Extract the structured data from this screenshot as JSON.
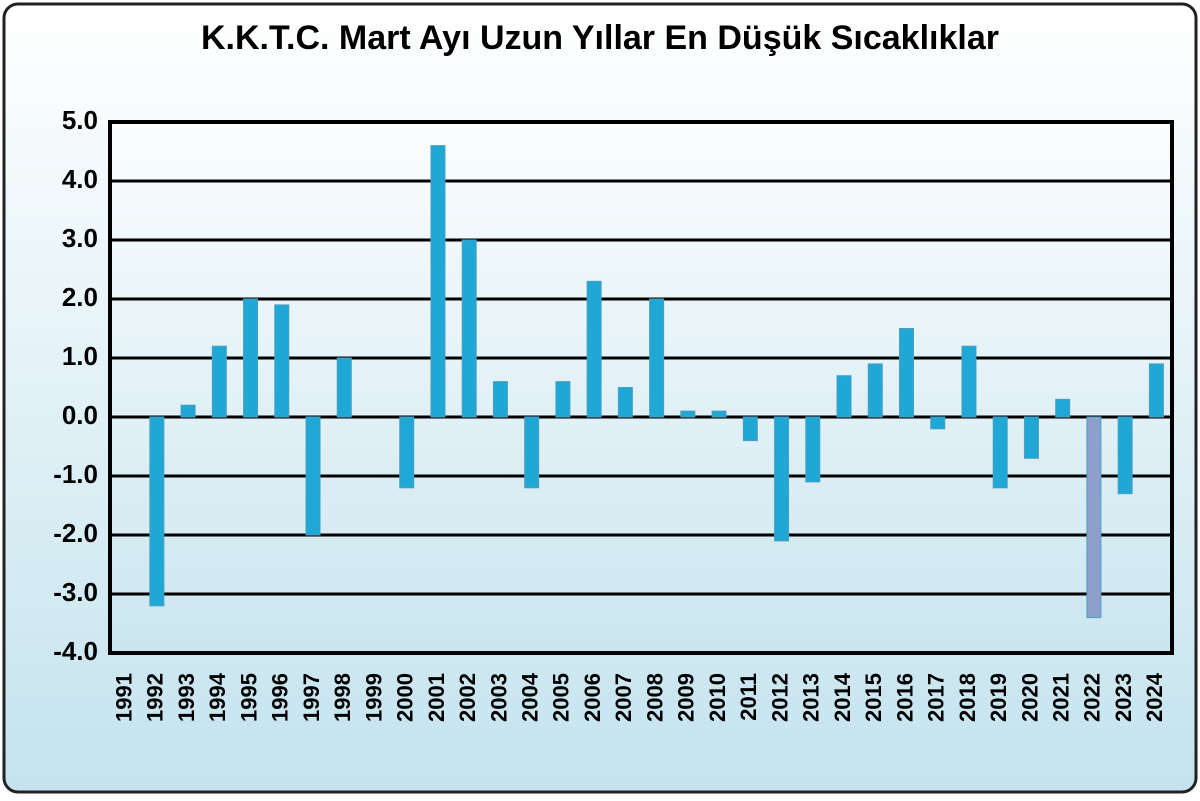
{
  "chart_data": {
    "type": "bar",
    "title": "K.K.T.C. Mart Ayı Uzun Yıllar En Düşük Sıcaklıklar",
    "categories": [
      "1991",
      "1992",
      "1993",
      "1994",
      "1995",
      "1996",
      "1997",
      "1998",
      "1999",
      "2000",
      "2001",
      "2002",
      "2003",
      "2004",
      "2005",
      "2006",
      "2007",
      "2008",
      "2009",
      "2010",
      "2011",
      "2012",
      "2013",
      "2014",
      "2015",
      "2016",
      "2017",
      "2018",
      "2019",
      "2020",
      "2021",
      "2022",
      "2023",
      "2024"
    ],
    "values": [
      null,
      -3.2,
      0.2,
      1.2,
      2.0,
      1.9,
      -2.0,
      1.0,
      null,
      -1.2,
      4.6,
      3.0,
      0.6,
      -1.2,
      0.6,
      2.3,
      0.5,
      2.0,
      0.1,
      0.1,
      -0.4,
      -2.1,
      -1.1,
      0.7,
      0.9,
      1.5,
      -0.2,
      1.2,
      -1.2,
      -0.7,
      0.3,
      -3.4,
      -1.3,
      0.9
    ],
    "colors": [
      "#1fa7d6",
      "#1fa7d6",
      "#1fa7d6",
      "#1fa7d6",
      "#1fa7d6",
      "#1fa7d6",
      "#1fa7d6",
      "#1fa7d6",
      "#1fa7d6",
      "#1fa7d6",
      "#1fa7d6",
      "#1fa7d6",
      "#1fa7d6",
      "#1fa7d6",
      "#1fa7d6",
      "#1fa7d6",
      "#1fa7d6",
      "#1fa7d6",
      "#1fa7d6",
      "#1fa7d6",
      "#1fa7d6",
      "#1fa7d6",
      "#1fa7d6",
      "#1fa7d6",
      "#1fa7d6",
      "#1fa7d6",
      "#1fa7d6",
      "#1fa7d6",
      "#1fa7d6",
      "#1fa7d6",
      "#1fa7d6",
      "#8e9fcc",
      "#1fa7d6",
      "#1fa7d6"
    ],
    "ylim": [
      -4,
      5
    ],
    "yticks": [
      {
        "value": -4,
        "label": "-4.0"
      },
      {
        "value": -3,
        "label": "-3.0"
      },
      {
        "value": -2,
        "label": "-2.0"
      },
      {
        "value": -1,
        "label": "-1.0"
      },
      {
        "value": 0,
        "label": "0.0"
      },
      {
        "value": 1,
        "label": "1.0"
      },
      {
        "value": 2,
        "label": "2.0"
      },
      {
        "value": 3,
        "label": "3.0"
      },
      {
        "value": 4,
        "label": "4.0"
      },
      {
        "value": 5,
        "label": "5.0"
      }
    ],
    "grid": true
  }
}
